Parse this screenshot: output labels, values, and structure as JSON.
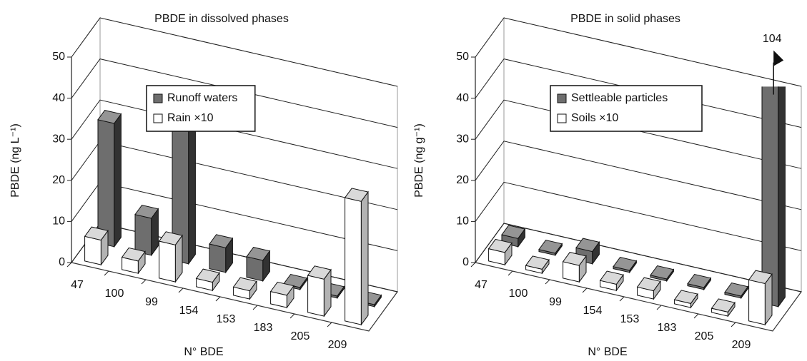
{
  "chart_data": [
    {
      "type": "bar3d",
      "title": "PBDE in dissolved phases",
      "xlabel": "N° BDE",
      "ylabel": "PBDE (ng L⁻¹)",
      "categories": [
        "47",
        "100",
        "99",
        "154",
        "153",
        "183",
        "205",
        "209"
      ],
      "series": [
        {
          "name": "Runoff waters",
          "color": "#6e6e6e",
          "values": [
            30,
            9,
            39,
            6,
            5,
            0.5,
            0.5,
            0.5
          ]
        },
        {
          "name": "Rain ×10",
          "color": "#ffffff",
          "values": [
            6,
            3,
            9,
            2,
            2,
            3,
            9,
            30
          ]
        }
      ],
      "ylim": [
        0,
        50
      ],
      "yticks": [
        0,
        10,
        20,
        30,
        40,
        50
      ],
      "grid": true,
      "legend": "upper center"
    },
    {
      "type": "bar3d",
      "title": "PBDE in solid phases",
      "xlabel": "N° BDE",
      "ylabel": "PBDE (ng g⁻¹)",
      "categories": [
        "47",
        "100",
        "99",
        "154",
        "153",
        "183",
        "205",
        "209"
      ],
      "series": [
        {
          "name": "Settleable particles",
          "color": "#6e6e6e",
          "values": [
            2,
            0.5,
            3,
            0.5,
            0.5,
            0.5,
            0.5,
            104
          ]
        },
        {
          "name": "Soils ×10",
          "color": "#ffffff",
          "values": [
            3,
            1,
            4,
            1.5,
            2,
            1,
            1,
            10
          ]
        }
      ],
      "ylim": [
        0,
        50
      ],
      "yticks": [
        0,
        10,
        20,
        30,
        40,
        50
      ],
      "grid": true,
      "legend": "upper center"
    }
  ]
}
